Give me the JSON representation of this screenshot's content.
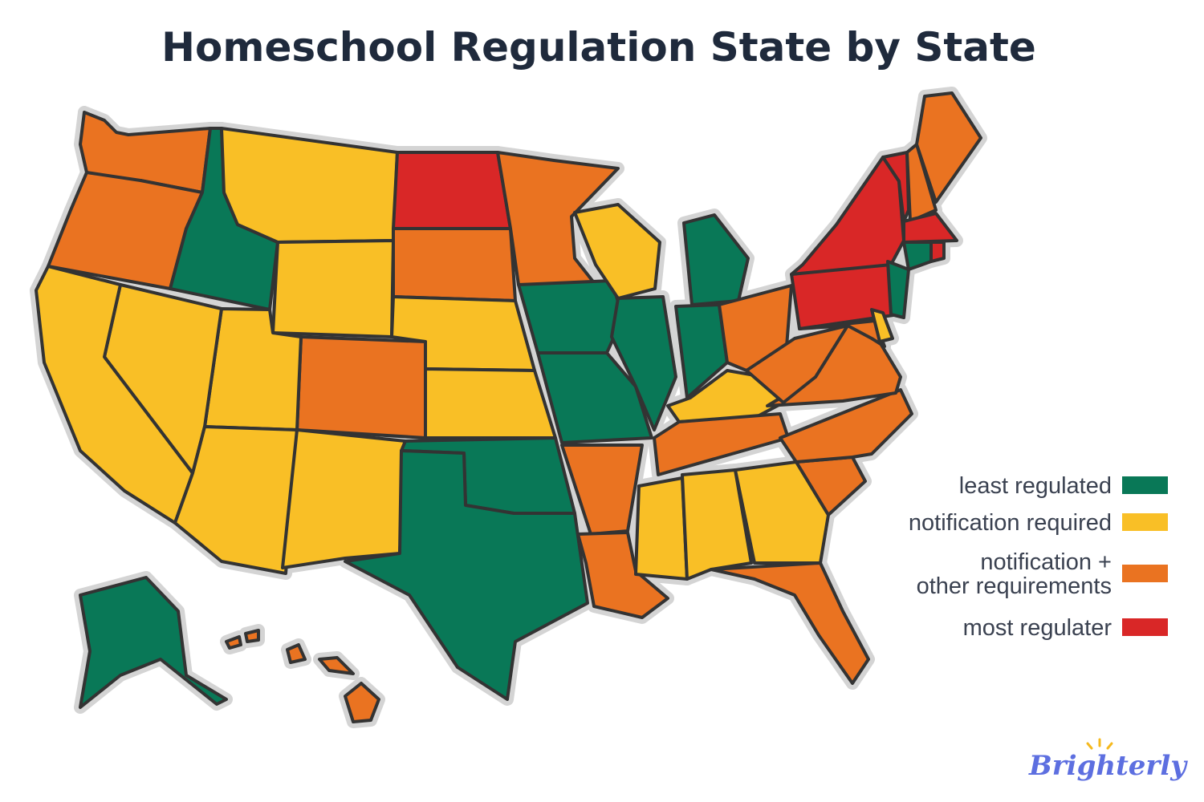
{
  "header": {
    "title": "Homeschool Regulation State by State"
  },
  "legend": [
    {
      "lines": [
        "least regulated"
      ],
      "color": "#097857"
    },
    {
      "lines": [
        "notification required"
      ],
      "color": "#f9bf26"
    },
    {
      "lines": [
        "notification +",
        "other requirements"
      ],
      "color": "#ea7321"
    },
    {
      "lines": [
        "most regulater"
      ],
      "color": "#d92727"
    }
  ],
  "brand": "Brighterly"
}
